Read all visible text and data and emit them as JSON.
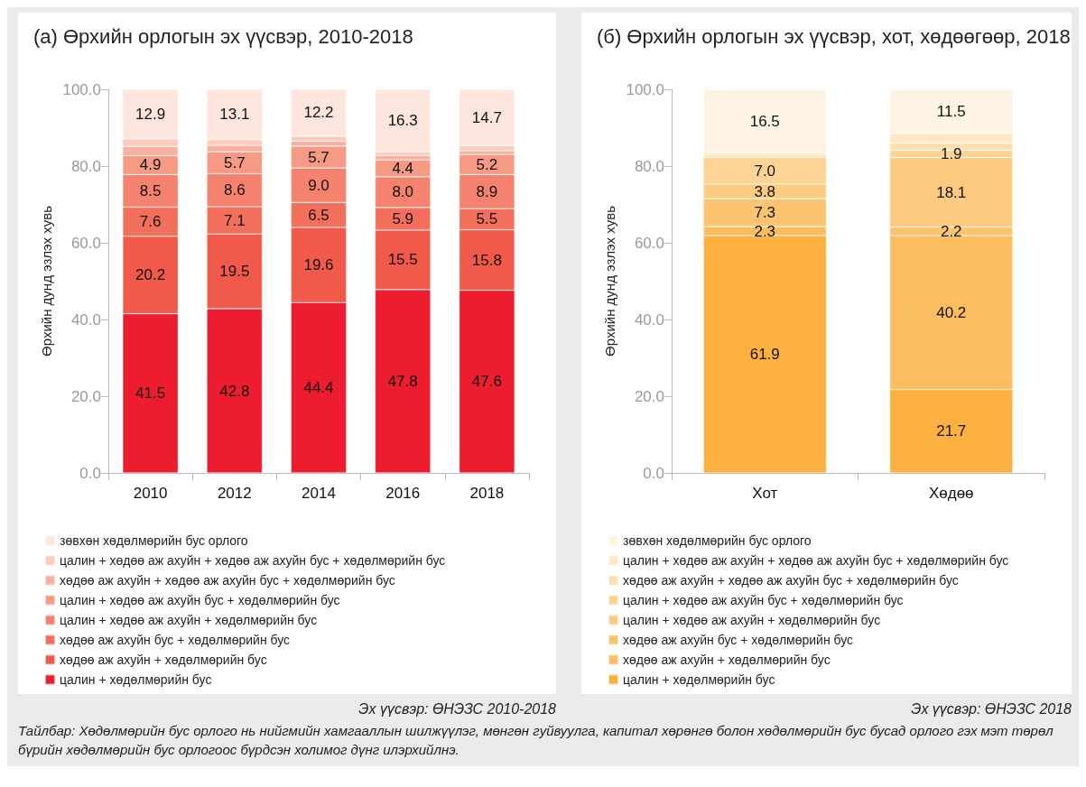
{
  "chart_data": [
    {
      "type": "bar",
      "stacked": true,
      "title": "(а) Өрхийн орлогын эх үүсвэр, 2010-2018",
      "ylabel": "Өрхийн дунд эзлэх хувь",
      "categories": [
        "2010",
        "2012",
        "2014",
        "2016",
        "2018"
      ],
      "ylim": [
        0,
        100
      ],
      "yticks": [
        {
          "value": 0,
          "label": "0.0"
        },
        {
          "value": 20,
          "label": "20.0"
        },
        {
          "value": 40,
          "label": "40.0"
        },
        {
          "value": 60,
          "label": "60.0"
        },
        {
          "value": 80,
          "label": "80.0"
        },
        {
          "value": 100,
          "label": "100.0"
        }
      ],
      "grid": false,
      "legend": "bottom",
      "series": [
        {
          "name": "цалин + хөдөлмөрийн бус",
          "color": "#ed1c2e",
          "values": [
            41.5,
            42.8,
            44.4,
            47.8,
            47.6
          ],
          "value_labels": [
            "41.5",
            "42.8",
            "44.4",
            "47.8",
            "47.6"
          ]
        },
        {
          "name": "хөдөө аж ахуйн + хөдөлмөрийн бус",
          "color": "#f15a4a",
          "values": [
            20.2,
            19.5,
            19.6,
            15.5,
            15.8
          ],
          "value_labels": [
            "20.2",
            "19.5",
            "19.6",
            "15.5",
            "15.8"
          ]
        },
        {
          "name": "хөдөө аж ахуйн бус + хөдөлмөрийн бус",
          "color": "#f26f5c",
          "values": [
            7.6,
            7.1,
            6.5,
            5.9,
            5.5
          ],
          "value_labels": [
            "7.6",
            "7.1",
            "6.5",
            "5.9",
            "5.5"
          ]
        },
        {
          "name": "цалин + хөдөө аж ахуйн + хөдөлмөрийн бус",
          "color": "#f4826e",
          "values": [
            8.5,
            8.6,
            9.0,
            8.0,
            8.9
          ],
          "value_labels": [
            "8.5",
            "8.6",
            "9.0",
            "8.0",
            "8.9"
          ]
        },
        {
          "name": "цалин + хөдөө аж ахуйн бус + хөдөлмөрийн бус",
          "color": "#f69a83",
          "values": [
            4.9,
            5.7,
            5.7,
            4.4,
            5.2
          ],
          "value_labels": [
            "4.9",
            "5.7",
            "5.7",
            "4.4",
            "5.2"
          ]
        },
        {
          "name": "хөдөө аж ахуйн + хөдөө аж ахуйн бус + хөдөлмөрийн бус",
          "color": "#f8b19e",
          "values": [
            2.4,
            1.7,
            1.3,
            1.2,
            1.0
          ],
          "value_labels": [
            null,
            null,
            null,
            null,
            null
          ]
        },
        {
          "name": "цалин + хөдөө аж ахуйн + хөдөө аж ахуйн бус + хөдөлмөрийн бус",
          "color": "#fbcbbd",
          "values": [
            2.0,
            1.5,
            1.3,
            0.9,
            1.3
          ],
          "value_labels": [
            null,
            null,
            null,
            null,
            null
          ]
        },
        {
          "name": "зөвхөн хөдөлмөрийн бус орлого",
          "color": "#fee5dd",
          "values": [
            12.9,
            13.1,
            12.2,
            16.3,
            14.7
          ],
          "value_labels": [
            "12.9",
            "13.1",
            "12.2",
            "16.3",
            "14.7"
          ]
        }
      ],
      "annotations": [
        "Эх үүсвэр: ӨНЭЗС 2010-2018",
        "Тайлбар: Хөдөлмөрийн бус орлого нь нийгмийн хамгааллын шилжүүлэг, мөнгөн гуйвуулга, капитал хөрөнгө болон хөдөлмөрийн бус бусад орлого гэх мэт төрөл бүрийн хөдөлмөрийн бус орлогоос бүрдсэн холимог дүнг илэрхийлнэ."
      ]
    },
    {
      "type": "bar",
      "stacked": true,
      "title": "(б) Өрхийн орлогын эх үүсвэр, хот, хөдөөгөөр, 2018",
      "ylabel": "Өрхийн дунд эзлэх хувь",
      "categories": [
        "Хот",
        "Хөдөө"
      ],
      "ylim": [
        0,
        100
      ],
      "yticks": [
        {
          "value": 0,
          "label": "0.0"
        },
        {
          "value": 20,
          "label": "20.0"
        },
        {
          "value": 40,
          "label": "40.0"
        },
        {
          "value": 60,
          "label": "60.0"
        },
        {
          "value": 80,
          "label": "80.0"
        },
        {
          "value": 100,
          "label": "100.0"
        }
      ],
      "grid": false,
      "legend": "bottom",
      "series": [
        {
          "name": "цалин + хөдөлмөрийн бус",
          "color": "#fbb040",
          "values": [
            61.9,
            21.7
          ],
          "value_labels": [
            "61.9",
            "21.7"
          ]
        },
        {
          "name": "хөдөө аж ахуйн + хөдөлмөрийн бус",
          "color": "#fbbd5f",
          "values": [
            2.3,
            40.2
          ],
          "value_labels": [
            "2.3",
            "40.2"
          ]
        },
        {
          "name": "хөдөө аж ахуйн бус + хөдөлмөрийн бус",
          "color": "#fcc370",
          "values": [
            7.3,
            2.2
          ],
          "value_labels": [
            "7.3",
            "2.2"
          ]
        },
        {
          "name": "цалин + хөдөө аж ахуйн + хөдөлмөрийн бус",
          "color": "#fdcb80",
          "values": [
            3.8,
            18.1
          ],
          "value_labels": [
            "3.8",
            "18.1"
          ]
        },
        {
          "name": "цалин + хөдөө аж ахуйн бус + хөдөлмөрийн бус",
          "color": "#fdd494",
          "values": [
            7.0,
            1.9
          ],
          "value_labels": [
            "7.0",
            "1.9"
          ]
        },
        {
          "name": "хөдөө аж ахуйн + хөдөө аж ахуйн бус + хөдөлмөрийн бус",
          "color": "#fee0ae",
          "values": [
            0.6,
            1.9
          ],
          "value_labels": [
            null,
            null
          ]
        },
        {
          "name": "цалин + хөдөө аж ахуйн + хөдөө аж ахуйн бус + хөдөлмөрийн бус",
          "color": "#fee8c5",
          "values": [
            0.6,
            2.5
          ],
          "value_labels": [
            null,
            null
          ]
        },
        {
          "name": "зөвхөн хөдөлмөрийн бус орлого",
          "color": "#fff3e4",
          "values": [
            16.5,
            11.5
          ],
          "value_labels": [
            "16.5",
            "11.5"
          ]
        }
      ],
      "annotations": [
        "Эх үүсвэр: ӨНЭЗС 2018"
      ]
    }
  ]
}
